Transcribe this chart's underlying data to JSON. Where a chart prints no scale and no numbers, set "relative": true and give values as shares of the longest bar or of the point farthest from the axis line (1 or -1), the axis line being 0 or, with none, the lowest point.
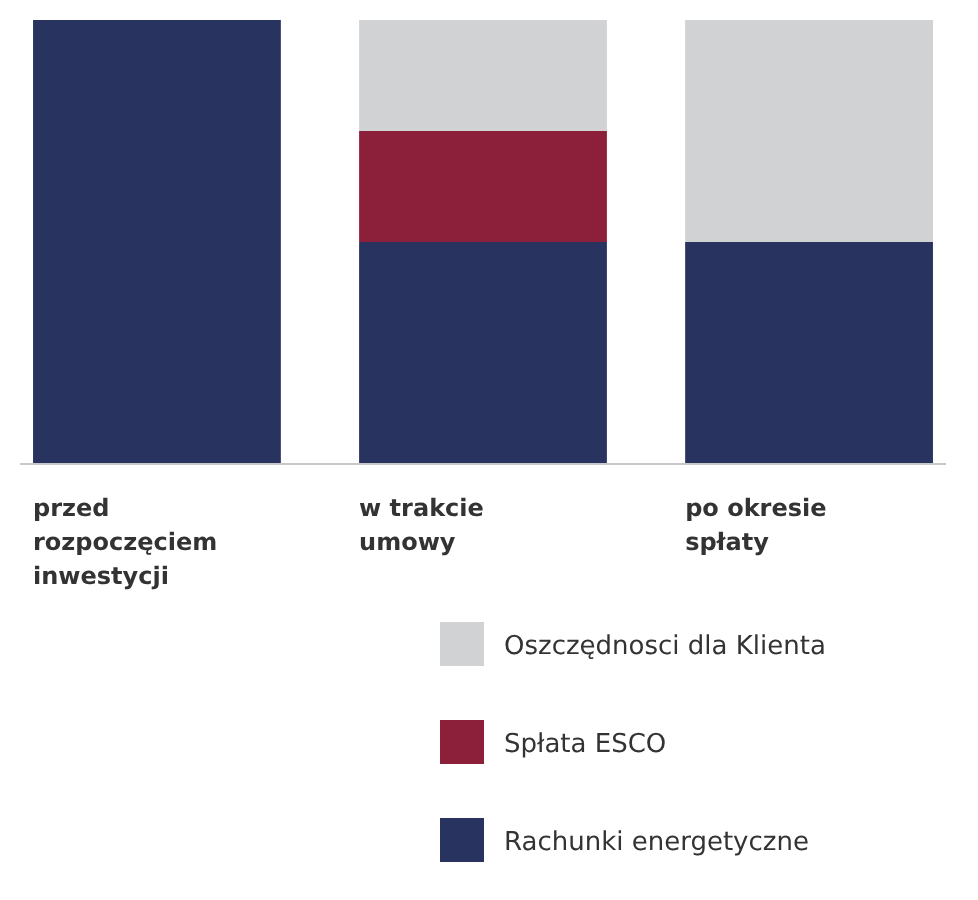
{
  "chart_data": {
    "type": "bar",
    "stacked": true,
    "relative": true,
    "categories": [
      "przed rozpoczęciem inwestycji",
      "w trakcie umowy",
      "po okresie spłaty"
    ],
    "series": [
      {
        "name": "Rachunki energetyczne",
        "color": "#283360",
        "values": [
          1,
          0.5,
          0.5
        ]
      },
      {
        "name": "Spłata ESCO",
        "color": "#8c203b",
        "values": [
          0,
          0.25,
          0
        ]
      },
      {
        "name": "Oszczędnosci dla Klienta",
        "color": "#d1d2d4",
        "values": [
          0,
          0.25,
          0.5
        ]
      }
    ],
    "legend": "bottom right"
  }
}
